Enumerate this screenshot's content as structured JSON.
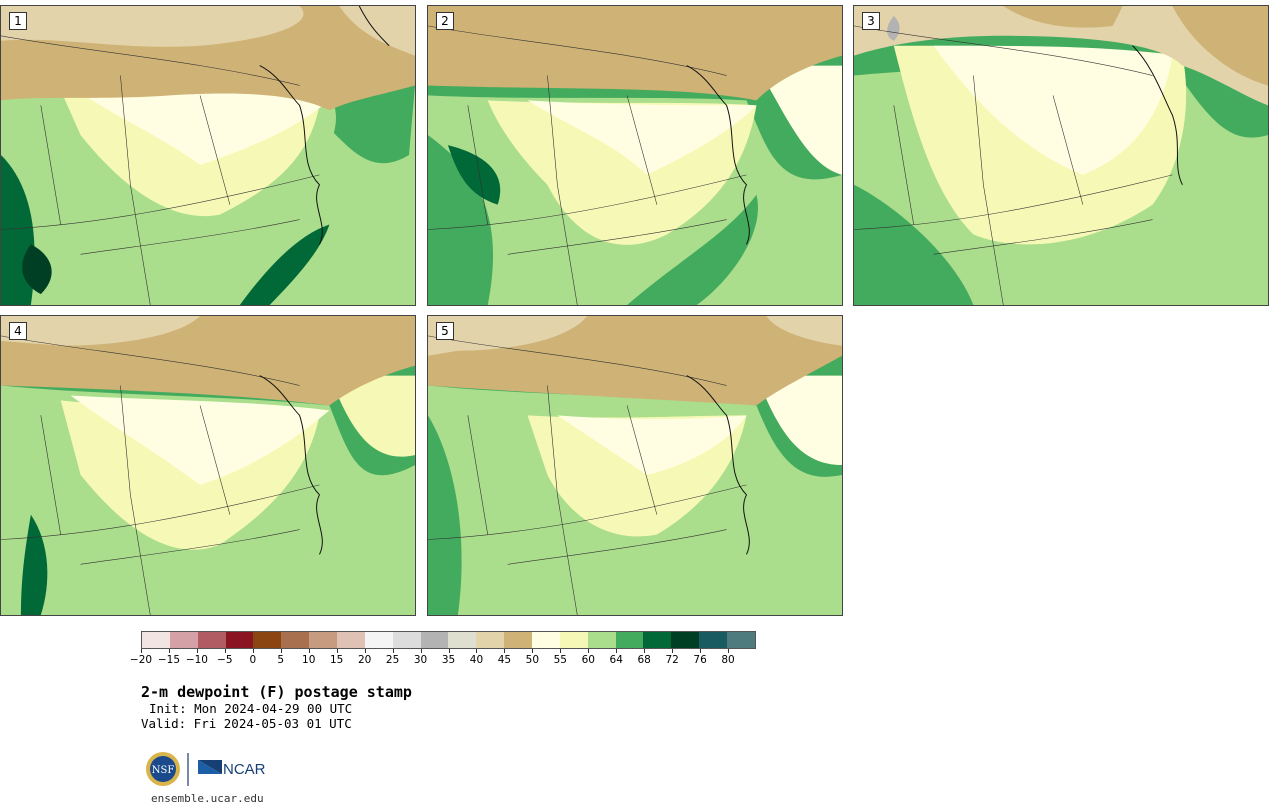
{
  "panels": [
    {
      "label": "1"
    },
    {
      "label": "2"
    },
    {
      "label": "3"
    },
    {
      "label": "4"
    },
    {
      "label": "5"
    }
  ],
  "colorbar": {
    "colors": [
      "#f3e4e4",
      "#d4a1a6",
      "#b05c62",
      "#8b1422",
      "#8b4512",
      "#a9704f",
      "#c79b80",
      "#e0c2b4",
      "#f4f4f4",
      "#dcdcdc",
      "#b3b3b3",
      "#dfdfd0",
      "#e3d3aa",
      "#cfb275",
      "#fffee3",
      "#f6f9b5",
      "#aadd8c",
      "#43ab5d",
      "#006937",
      "#003f24",
      "#1a5a61",
      "#4f7b7f"
    ],
    "tick_labels": [
      "−20",
      "−15",
      "−10",
      "−5",
      "0",
      "5",
      "10",
      "15",
      "20",
      "25",
      "30",
      "35",
      "40",
      "45",
      "50",
      "55",
      "60",
      "64",
      "68",
      "72",
      "76",
      "80"
    ]
  },
  "title": "2-m dewpoint (F) postage stamp",
  "init": "Init: Mon 2024-04-29 00 UTC",
  "valid": "Valid: Fri 2024-05-03 01 UTC",
  "logos": {
    "nsf": "NSF",
    "ncar": "NCAR"
  },
  "url": "ensemble.ucar.edu"
}
